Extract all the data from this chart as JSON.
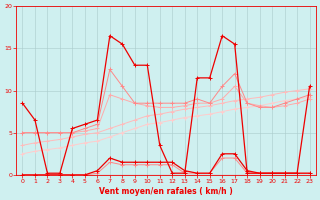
{
  "x": [
    0,
    1,
    2,
    3,
    4,
    5,
    6,
    7,
    8,
    9,
    10,
    11,
    12,
    13,
    14,
    15,
    16,
    17,
    18,
    19,
    20,
    21,
    22,
    23
  ],
  "series": {
    "line1_dark_red": [
      8.5,
      6.5,
      0.2,
      0.2,
      5.5,
      6.0,
      6.5,
      16.5,
      15.5,
      13.0,
      13.0,
      3.5,
      0.2,
      0.2,
      11.5,
      11.5,
      16.5,
      15.5,
      0.2,
      0.2,
      0.2,
      0.2,
      0.2,
      10.5
    ],
    "line2_pink_steep": [
      5.0,
      5.0,
      5.0,
      5.0,
      5.0,
      5.5,
      6.0,
      12.5,
      10.5,
      8.5,
      8.5,
      8.5,
      8.5,
      8.5,
      9.0,
      8.5,
      10.5,
      12.0,
      8.5,
      8.0,
      8.0,
      8.5,
      9.0,
      9.5
    ],
    "line3_pink_mid": [
      5.0,
      5.0,
      5.0,
      5.0,
      5.0,
      5.2,
      5.5,
      9.5,
      9.0,
      8.5,
      8.2,
      8.0,
      8.0,
      8.2,
      8.5,
      8.5,
      9.0,
      10.5,
      8.5,
      8.2,
      8.0,
      8.2,
      8.5,
      9.0
    ],
    "line4_pink_light": [
      3.5,
      3.8,
      4.0,
      4.2,
      4.5,
      4.8,
      5.0,
      5.5,
      6.0,
      6.5,
      7.0,
      7.2,
      7.5,
      7.8,
      8.0,
      8.2,
      8.5,
      8.8,
      9.0,
      9.2,
      9.5,
      9.8,
      10.0,
      10.2
    ],
    "line5_pink_lightest": [
      2.5,
      2.8,
      3.0,
      3.2,
      3.5,
      3.8,
      4.0,
      4.5,
      5.0,
      5.5,
      6.0,
      6.2,
      6.5,
      6.8,
      7.0,
      7.2,
      7.5,
      7.8,
      8.0,
      8.2,
      8.5,
      8.8,
      9.0,
      9.2
    ],
    "moyen_dark": [
      0,
      0,
      0,
      0,
      0,
      0,
      0.5,
      2.0,
      1.5,
      1.5,
      1.5,
      1.5,
      1.5,
      0.5,
      0.2,
      0.2,
      2.5,
      2.5,
      0.5,
      0.2,
      0.2,
      0.2,
      0.2,
      0.2
    ],
    "moyen_mid": [
      0,
      0,
      0,
      0,
      0,
      0,
      0.2,
      1.5,
      1.2,
      1.2,
      1.2,
      1.2,
      1.2,
      0.2,
      0.2,
      0.2,
      2.0,
      2.0,
      0.2,
      0.2,
      0.2,
      0.2,
      0.2,
      0.2
    ]
  },
  "baseline": 0,
  "ylim": [
    0,
    20
  ],
  "xlim": [
    -0.5,
    23.5
  ],
  "yticks": [
    0,
    5,
    10,
    15,
    20
  ],
  "xticks": [
    0,
    1,
    2,
    3,
    4,
    5,
    6,
    7,
    8,
    9,
    10,
    11,
    12,
    13,
    14,
    15,
    16,
    17,
    18,
    19,
    20,
    21,
    22,
    23
  ],
  "xlabel": "Vent moyen/en rafales ( km/h )",
  "bg_color": "#cff0f0",
  "grid_color": "#aacccc",
  "color_dark_red": "#ee0000",
  "color_pink1": "#ff8888",
  "color_pink2": "#ffaaaa",
  "color_pink3": "#ffbbbb",
  "color_pink4": "#ffcccc"
}
